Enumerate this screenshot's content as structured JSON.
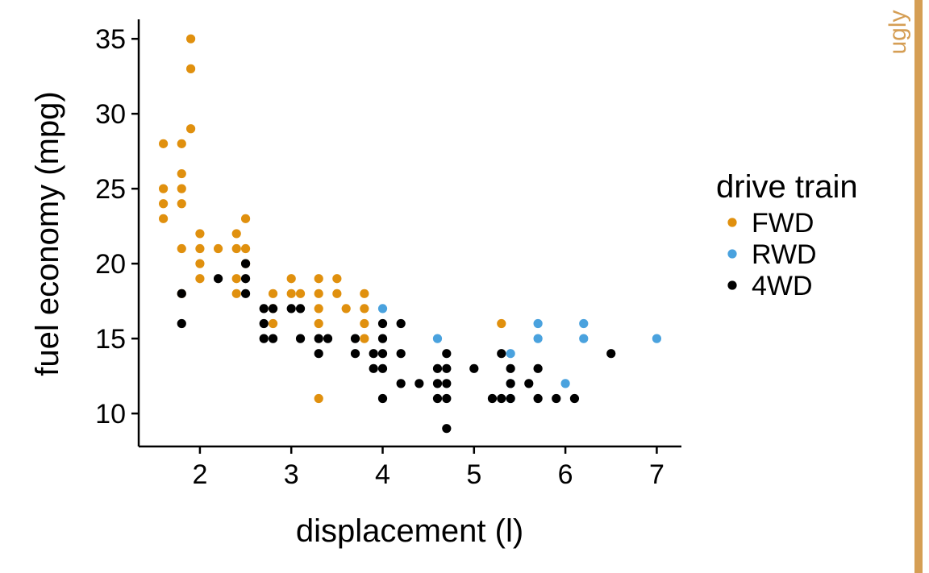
{
  "side_tag": "ugly",
  "colors": {
    "FWD": "#e0900e",
    "RWD": "#4aa2de",
    "4WD": "#000000",
    "tag": "#d59e54"
  },
  "chart_data": {
    "type": "scatter",
    "xlabel": "displacement (l)",
    "ylabel": "fuel economy (mpg)",
    "xlim": [
      1.33,
      7.27
    ],
    "ylim": [
      7.8,
      36.3
    ],
    "xticks": [
      2,
      3,
      4,
      5,
      6,
      7
    ],
    "yticks": [
      10,
      15,
      20,
      25,
      30,
      35
    ],
    "grid": false,
    "legend": {
      "title": "drive train",
      "position": "right",
      "labels": [
        "FWD",
        "RWD",
        "4WD"
      ]
    },
    "series": [
      {
        "name": "FWD",
        "color": "#e0900e",
        "points": [
          [
            1.6,
            28
          ],
          [
            1.6,
            25
          ],
          [
            1.6,
            24
          ],
          [
            1.6,
            23
          ],
          [
            1.8,
            28
          ],
          [
            1.8,
            26
          ],
          [
            1.8,
            25
          ],
          [
            1.8,
            24
          ],
          [
            1.8,
            21
          ],
          [
            1.8,
            18
          ],
          [
            1.9,
            35
          ],
          [
            1.9,
            33
          ],
          [
            1.9,
            29
          ],
          [
            2.0,
            22
          ],
          [
            2.0,
            21
          ],
          [
            2.0,
            20
          ],
          [
            2.0,
            19
          ],
          [
            2.2,
            21
          ],
          [
            2.4,
            22
          ],
          [
            2.4,
            21
          ],
          [
            2.4,
            19
          ],
          [
            2.4,
            18
          ],
          [
            2.5,
            23
          ],
          [
            2.5,
            21
          ],
          [
            2.5,
            20
          ],
          [
            2.8,
            18
          ],
          [
            2.8,
            17
          ],
          [
            2.8,
            16
          ],
          [
            3.0,
            19
          ],
          [
            3.0,
            18
          ],
          [
            3.1,
            18
          ],
          [
            3.3,
            19
          ],
          [
            3.3,
            18
          ],
          [
            3.3,
            17
          ],
          [
            3.3,
            16
          ],
          [
            3.3,
            11
          ],
          [
            3.5,
            19
          ],
          [
            3.5,
            18
          ],
          [
            3.6,
            17
          ],
          [
            3.8,
            18
          ],
          [
            3.8,
            17
          ],
          [
            3.8,
            16
          ],
          [
            3.8,
            15
          ],
          [
            5.3,
            16
          ]
        ]
      },
      {
        "name": "RWD",
        "color": "#4aa2de",
        "points": [
          [
            4.0,
            17
          ],
          [
            4.6,
            15
          ],
          [
            5.4,
            14
          ],
          [
            5.4,
            12
          ],
          [
            5.4,
            11
          ],
          [
            5.7,
            16
          ],
          [
            5.7,
            15
          ],
          [
            6.0,
            12
          ],
          [
            6.2,
            16
          ],
          [
            6.2,
            15
          ],
          [
            7.0,
            15
          ]
        ]
      },
      {
        "name": "4WD",
        "color": "#000000",
        "points": [
          [
            1.8,
            18
          ],
          [
            1.8,
            16
          ],
          [
            2.2,
            19
          ],
          [
            2.5,
            20
          ],
          [
            2.5,
            19
          ],
          [
            2.5,
            18
          ],
          [
            2.7,
            17
          ],
          [
            2.7,
            16
          ],
          [
            2.7,
            15
          ],
          [
            2.8,
            17
          ],
          [
            2.8,
            15
          ],
          [
            3.0,
            17
          ],
          [
            3.1,
            17
          ],
          [
            3.1,
            15
          ],
          [
            3.3,
            15
          ],
          [
            3.3,
            14
          ],
          [
            3.4,
            15
          ],
          [
            3.7,
            15
          ],
          [
            3.7,
            14
          ],
          [
            3.9,
            14
          ],
          [
            3.9,
            13
          ],
          [
            4.0,
            16
          ],
          [
            4.0,
            15
          ],
          [
            4.0,
            14
          ],
          [
            4.0,
            13
          ],
          [
            4.0,
            11
          ],
          [
            4.2,
            16
          ],
          [
            4.2,
            14
          ],
          [
            4.2,
            12
          ],
          [
            4.4,
            12
          ],
          [
            4.6,
            13
          ],
          [
            4.6,
            12
          ],
          [
            4.6,
            11
          ],
          [
            4.7,
            14
          ],
          [
            4.7,
            13
          ],
          [
            4.7,
            12
          ],
          [
            4.7,
            11
          ],
          [
            4.7,
            9
          ],
          [
            5.0,
            13
          ],
          [
            5.2,
            11
          ],
          [
            5.3,
            14
          ],
          [
            5.3,
            11
          ],
          [
            5.4,
            13
          ],
          [
            5.4,
            12
          ],
          [
            5.4,
            11
          ],
          [
            5.6,
            12
          ],
          [
            5.7,
            13
          ],
          [
            5.7,
            11
          ],
          [
            5.9,
            11
          ],
          [
            6.1,
            11
          ],
          [
            6.5,
            14
          ]
        ]
      }
    ]
  }
}
